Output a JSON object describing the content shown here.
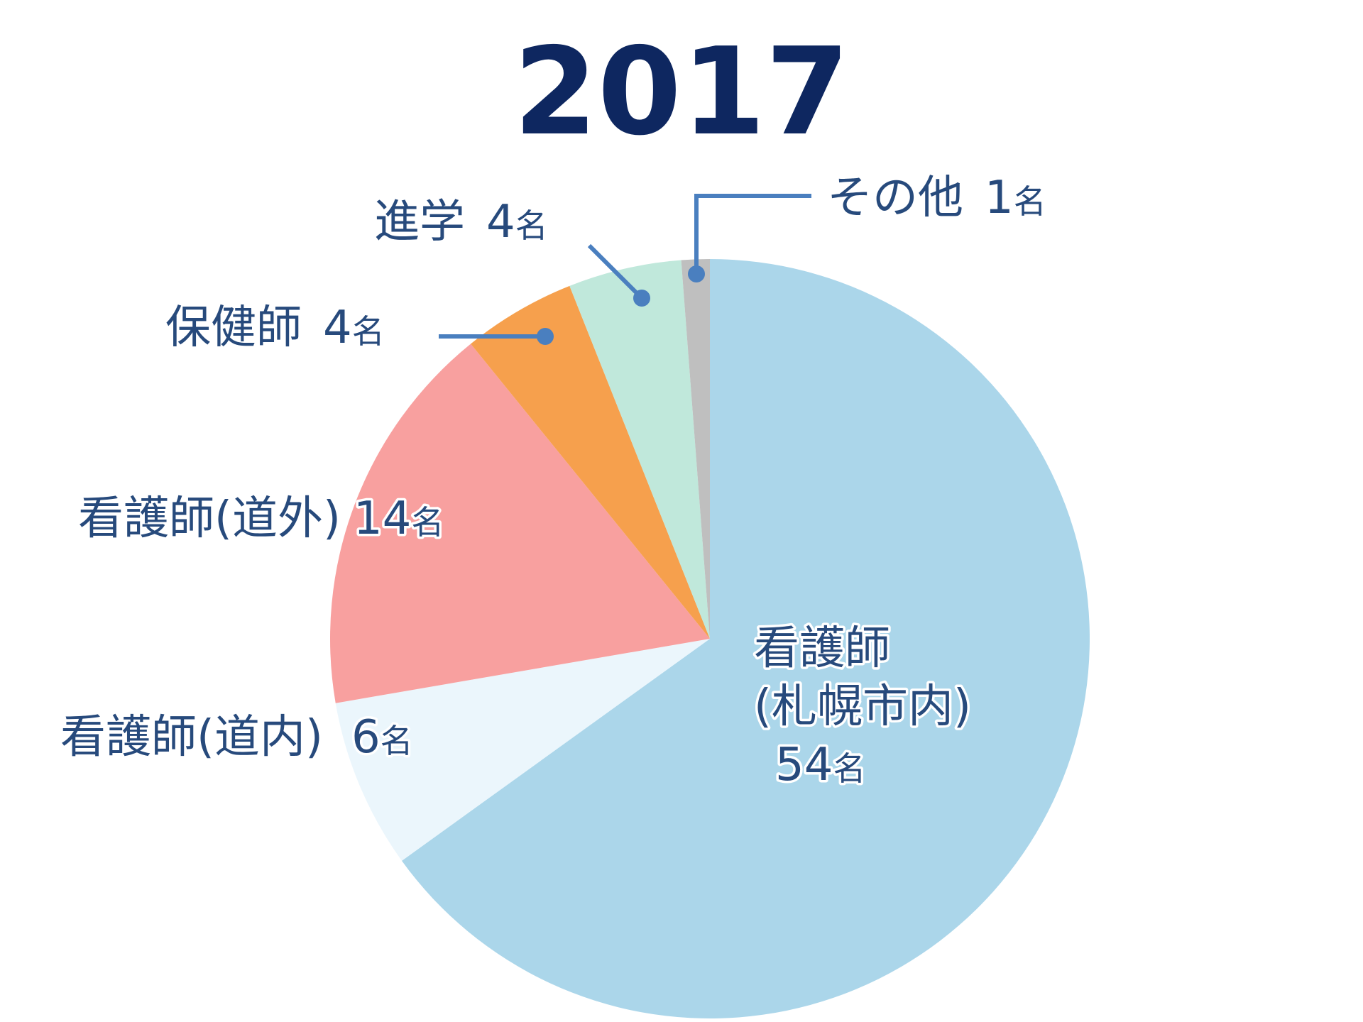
{
  "chart_data": {
    "type": "pie",
    "title": "2017",
    "unit": "名",
    "start": "12 o'clock, clockwise",
    "slices": [
      {
        "label": "看護師(札幌市内)",
        "label_lines": [
          "看護師",
          "(札幌市内)"
        ],
        "value": 54,
        "value_text": "54",
        "color": "#abd6ea"
      },
      {
        "label": "看護師(道内)",
        "label_lines": [
          "看護師(道内)"
        ],
        "value": 6,
        "value_text": "6",
        "color": "#ebf6fc"
      },
      {
        "label": "看護師(道外)",
        "label_lines": [
          "看護師(道外)"
        ],
        "value": 14,
        "value_text": "14",
        "color": "#f8a09f"
      },
      {
        "label": "保健師",
        "label_lines": [
          "保健師"
        ],
        "value": 4,
        "value_text": "4",
        "color": "#f6a04d"
      },
      {
        "label": "進学",
        "label_lines": [
          "進学"
        ],
        "value": 4,
        "value_text": "4",
        "color": "#c0e8db"
      },
      {
        "label": "その他",
        "label_lines": [
          "その他"
        ],
        "value": 1,
        "value_text": "1",
        "color": "#bfbfbf"
      }
    ],
    "leader_color": "#4a7fbf",
    "text_color": "#274a7c",
    "title_color": "#0e2760"
  }
}
